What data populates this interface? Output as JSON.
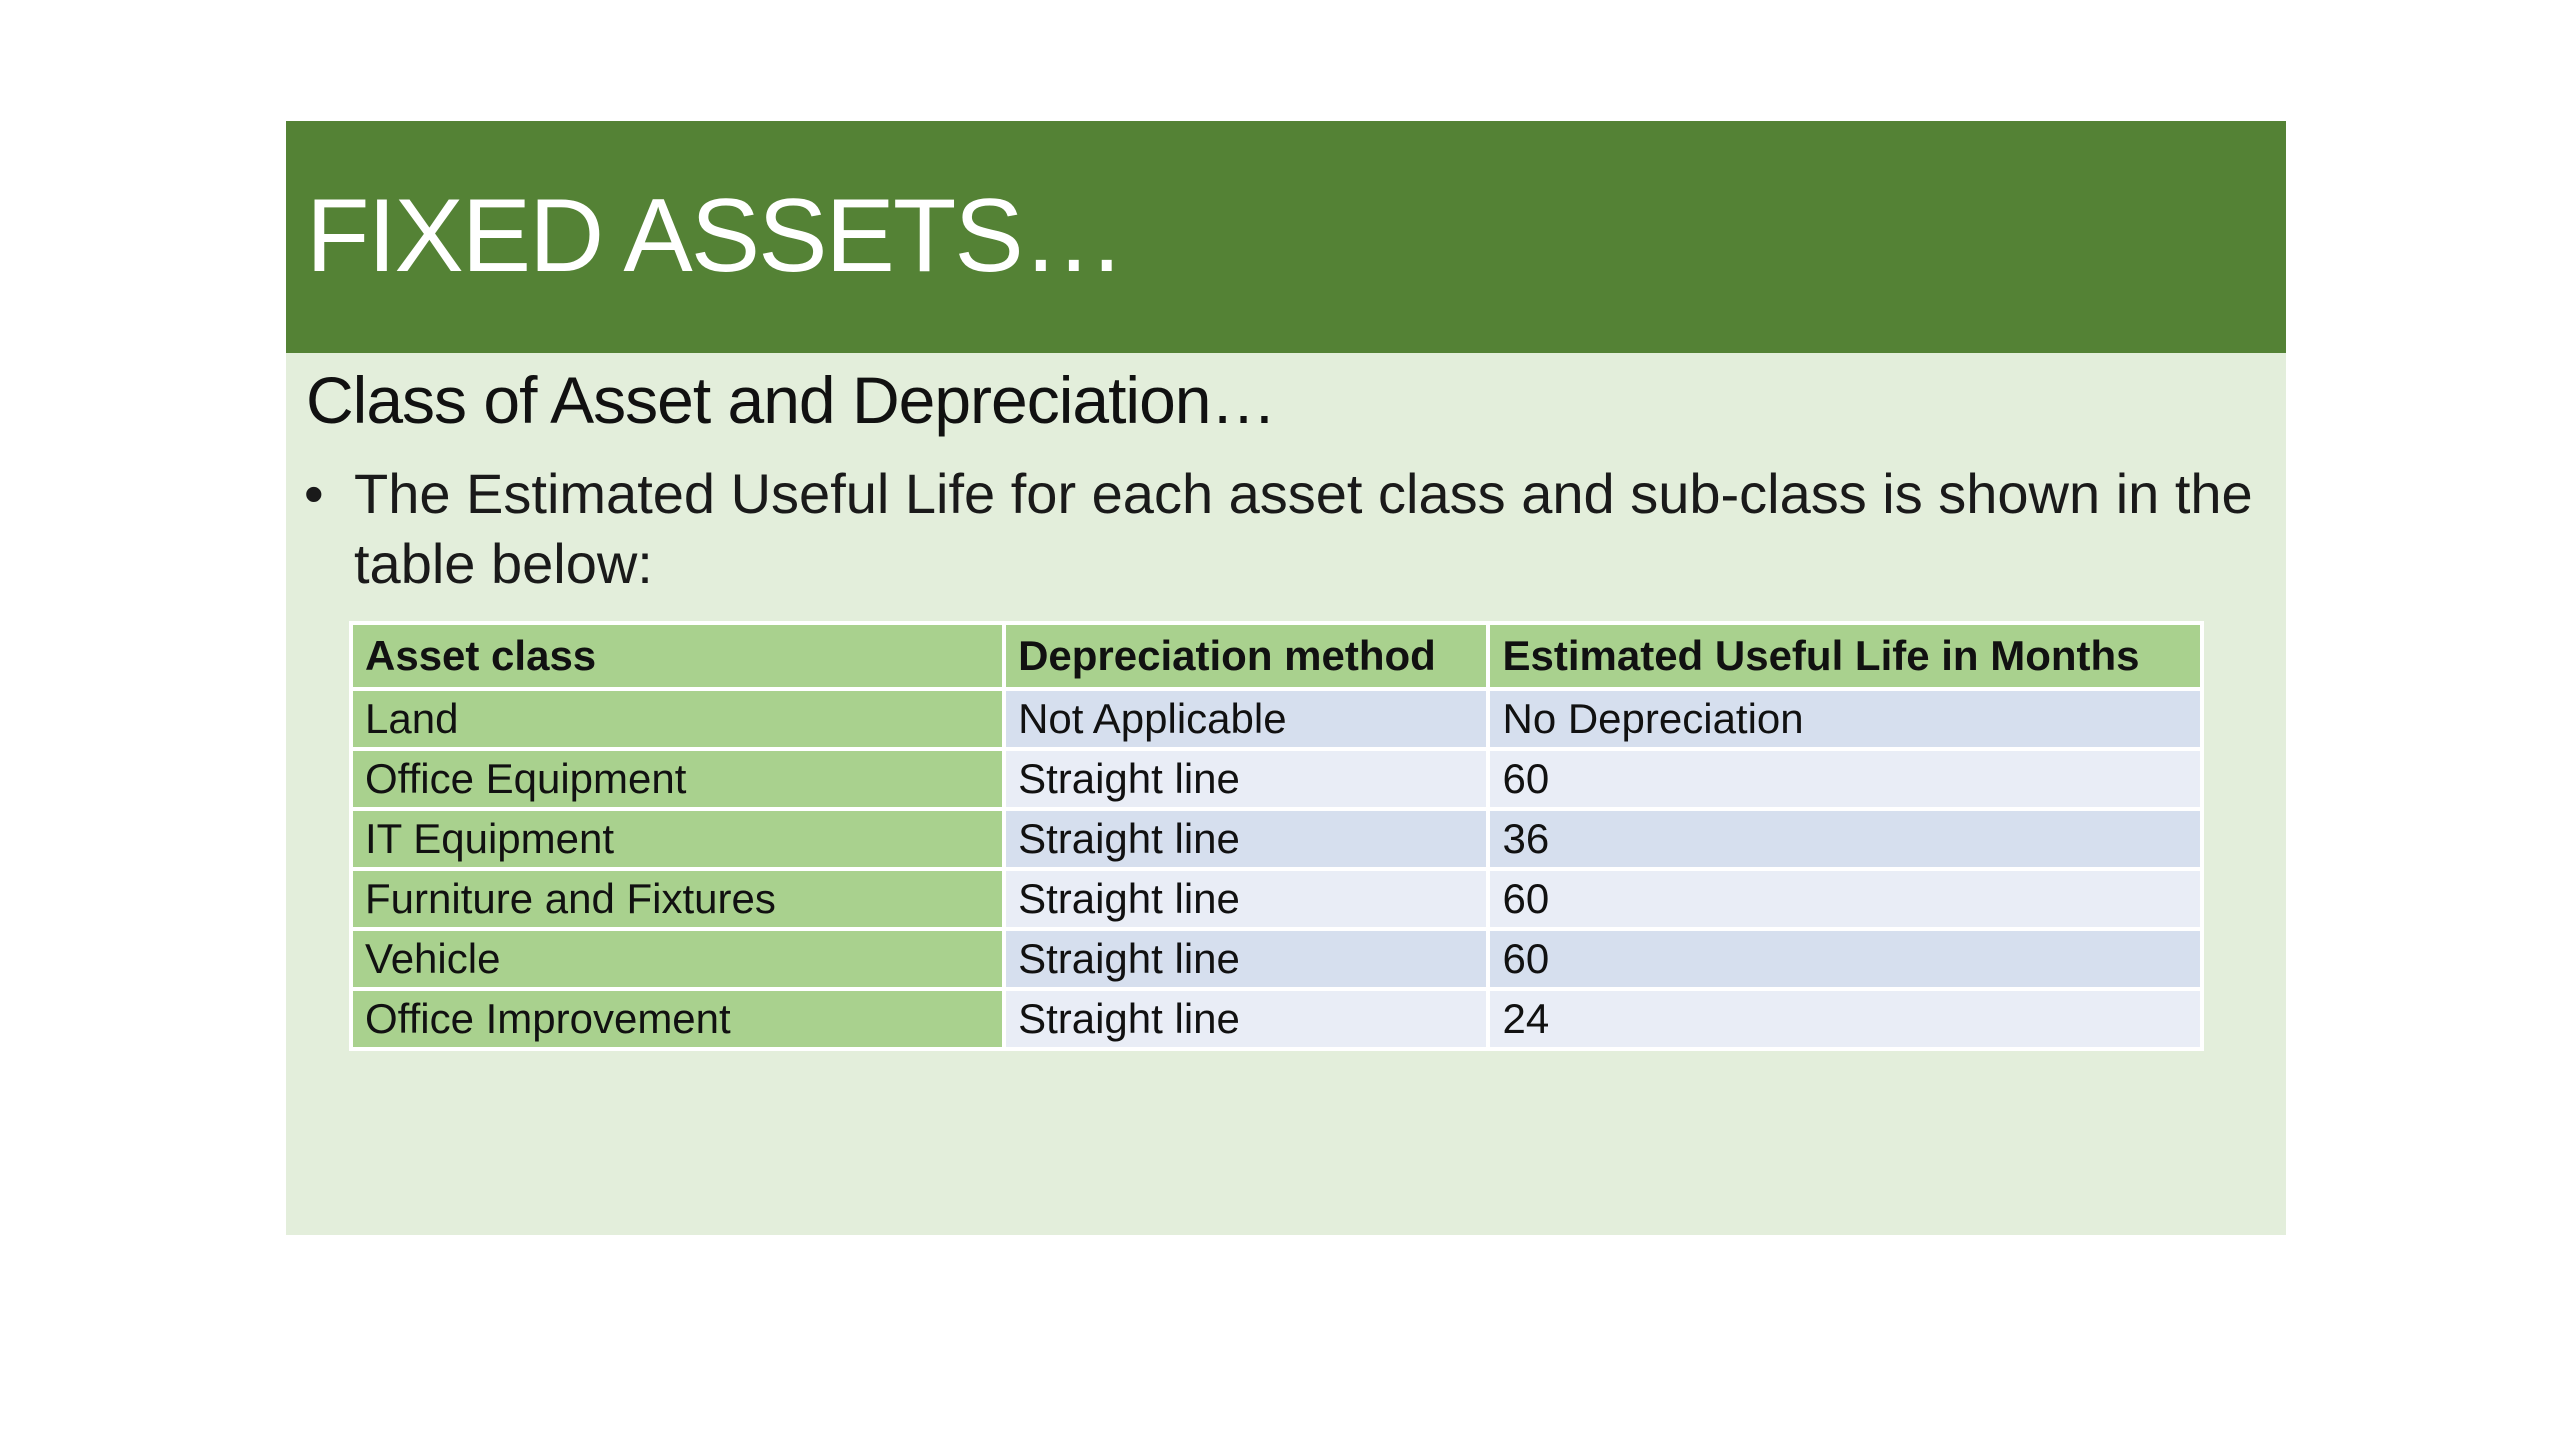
{
  "slide": {
    "title": "FIXED ASSETS…",
    "subtitle": "Class of Asset and Depreciation…",
    "bullet": "The Estimated Useful Life for each asset class and sub-class is shown in the table below:",
    "colors": {
      "title_band": "#548235",
      "body_bg": "#e3eedb",
      "header_cell": "#a9d18e",
      "row_dark": "#d6dfee",
      "row_light": "#e9edf6"
    }
  },
  "table": {
    "headers": [
      "Asset class",
      "Depreciation method",
      "Estimated Useful Life in Months"
    ],
    "rows": [
      [
        "Land",
        "Not Applicable",
        "No Depreciation"
      ],
      [
        "Office Equipment",
        "Straight line",
        "60"
      ],
      [
        "IT Equipment",
        "Straight line",
        "36"
      ],
      [
        "Furniture and Fixtures",
        "Straight line",
        "60"
      ],
      [
        "Vehicle",
        "Straight line",
        "60"
      ],
      [
        "Office Improvement",
        "Straight line",
        "24"
      ]
    ]
  }
}
